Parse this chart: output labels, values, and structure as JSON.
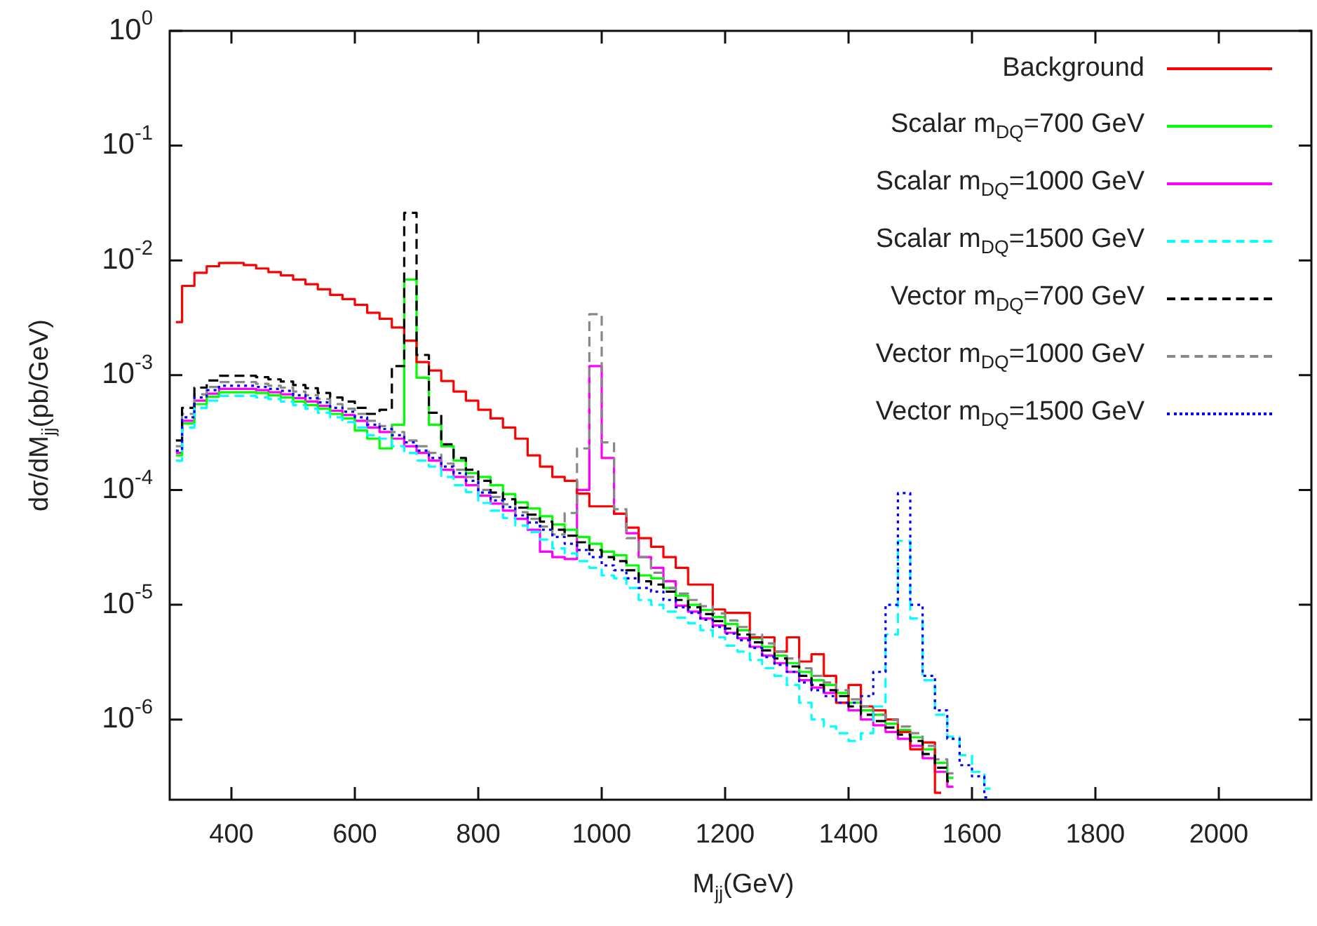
{
  "chart_data": {
    "type": "step",
    "xlabel": "M$_{jj}$(GeV)",
    "ylabel": "dσ/dM$_{jj}$(pb/GeV)",
    "x": [
      310,
      330,
      350,
      370,
      390,
      410,
      430,
      450,
      470,
      490,
      510,
      530,
      550,
      570,
      590,
      610,
      630,
      650,
      670,
      690,
      710,
      730,
      750,
      770,
      790,
      810,
      830,
      850,
      870,
      890,
      910,
      930,
      950,
      970,
      990,
      1010,
      1030,
      1050,
      1070,
      1090,
      1110,
      1130,
      1150,
      1170,
      1190,
      1210,
      1230,
      1250,
      1270,
      1290,
      1310,
      1330,
      1350,
      1370,
      1390,
      1410,
      1430,
      1450,
      1470,
      1490,
      1510,
      1530,
      1550,
      1570,
      1590,
      1610,
      1630
    ],
    "series": [
      {
        "name": "Background",
        "color": "#ff0000",
        "line_style": "solid",
        "values": [
          0.0029,
          0.006,
          0.0078,
          0.0089,
          0.0095,
          0.0095,
          0.0091,
          0.0085,
          0.0079,
          0.0074,
          0.0068,
          0.0062,
          0.0056,
          0.005,
          0.0046,
          0.0041,
          0.0035,
          0.0031,
          0.0026,
          0.002,
          0.0013,
          0.0011,
          0.00089,
          0.00072,
          0.0006,
          0.0005,
          0.00042,
          0.00035,
          0.00028,
          0.0002,
          0.00016,
          0.00013,
          0.00012,
          9.3e-05,
          7.2e-05,
          7.2e-05,
          6.2e-05,
          4.7e-05,
          3.8e-05,
          3.2e-05,
          2.6e-05,
          2.1e-05,
          1.5e-05,
          1.5e-05,
          9.1e-06,
          8.5e-06,
          8.5e-06,
          5.2e-06,
          5.2e-06,
          3.9e-06,
          5.2e-06,
          3.2e-06,
          3.7e-06,
          2.4e-06,
          1.4e-06,
          2e-06,
          1.3e-06,
          1.2e-06,
          1e-06,
          7.8e-07,
          5.5e-07,
          6.3e-07,
          2.3e-07,
          null,
          null,
          null,
          null
        ]
      },
      {
        "name": "Scalar m$_{DQ}$=700 GeV",
        "color": "#00ff00",
        "line_style": "solid",
        "values": [
          0.0002,
          0.00038,
          0.00056,
          0.00065,
          0.00071,
          0.00071,
          0.00071,
          0.0007,
          0.00067,
          0.00064,
          0.00059,
          0.00055,
          0.00051,
          0.00046,
          0.00042,
          0.00033,
          0.00028,
          0.00023,
          0.00037,
          0.0068,
          0.00095,
          0.00037,
          0.00024,
          0.00018,
          0.00014,
          0.00013,
          0.00011,
          9.2e-05,
          7.8e-05,
          6.9e-05,
          5.9e-05,
          5e-05,
          4.5e-05,
          3.9e-05,
          3.4e-05,
          2.9e-05,
          2.7e-05,
          2.2e-05,
          1.8e-05,
          1.7e-05,
          1.4e-05,
          1.2e-05,
          1e-05,
          9e-06,
          7.8e-06,
          6.8e-06,
          6e-06,
          5.1e-06,
          4.3e-06,
          3.6e-06,
          3.1e-06,
          2.6e-06,
          2.2e-06,
          2e-06,
          1.7e-06,
          1.4e-06,
          1.2e-06,
          1.1e-06,
          9.2e-07,
          8.1e-07,
          7e-07,
          5.5e-07,
          4.2e-07,
          3.1e-07,
          null,
          null,
          null
        ]
      },
      {
        "name": "Scalar m$_{DQ}$=1000 GeV",
        "color": "#ff00ff",
        "line_style": "solid",
        "values": [
          0.00021,
          0.0004,
          0.0006,
          0.00069,
          0.00076,
          0.00076,
          0.00076,
          0.00074,
          0.00071,
          0.00068,
          0.00063,
          0.00059,
          0.00054,
          0.00049,
          0.00045,
          0.0004,
          0.00035,
          0.00032,
          0.00028,
          0.00024,
          0.00021,
          0.00018,
          0.00015,
          0.00013,
          0.00011,
          8.9e-05,
          7.6e-05,
          6.6e-05,
          5.6e-05,
          4.5e-05,
          2.9e-05,
          2.6e-05,
          2.5e-05,
          0.0001,
          0.0012,
          0.00019,
          6.2e-05,
          4.2e-05,
          2.6e-05,
          2.1e-05,
          1.6e-05,
          9.8e-06,
          8.7e-06,
          7.6e-06,
          6.6e-06,
          5.7e-06,
          5.1e-06,
          4.3e-06,
          3.6e-06,
          3.1e-06,
          2.6e-06,
          2.2e-06,
          1.9e-06,
          1.7e-06,
          1.4e-06,
          1.2e-06,
          1e-06,
          8.9e-07,
          7.8e-07,
          6.8e-07,
          5.9e-07,
          4.6e-07,
          3.5e-07,
          2.6e-07,
          null,
          null,
          null
        ]
      },
      {
        "name": "Scalar m$_{DQ}$=1500 GeV",
        "color": "#00ffff",
        "line_style": "dashed",
        "values": [
          0.00018,
          0.00035,
          0.00052,
          0.0006,
          0.00066,
          0.00066,
          0.00066,
          0.00064,
          0.00062,
          0.00059,
          0.00055,
          0.00051,
          0.00047,
          0.00043,
          0.00039,
          0.00035,
          0.0003,
          0.00028,
          0.00024,
          0.00021,
          0.00018,
          0.00016,
          0.00013,
          0.00011,
          9.6e-05,
          7.7e-05,
          6.6e-05,
          5.7e-05,
          4.9e-05,
          4.3e-05,
          3.7e-05,
          3.1e-05,
          2.8e-05,
          2.4e-05,
          2.1e-05,
          1.8e-05,
          1.7e-05,
          1.4e-05,
          1.1e-05,
          1e-05,
          8.7e-06,
          7.7e-06,
          6.9e-06,
          6e-06,
          5.2e-06,
          4.4e-06,
          3.9e-06,
          3.3e-06,
          2.8e-06,
          2.4e-06,
          2e-06,
          1.4e-06,
          1e-06,
          8.7e-07,
          7.6e-07,
          6.5e-07,
          7.6e-07,
          1.3e-06,
          5.5e-06,
          3.6e-05,
          7.6e-06,
          2.2e-06,
          1.1e-06,
          7.1e-07,
          4.9e-07,
          3.5e-07,
          2.5e-07
        ]
      },
      {
        "name": "Vector m$_{DQ}$=700 GeV",
        "color": "#000000",
        "line_style": "dashed",
        "values": [
          0.00027,
          0.00052,
          0.00078,
          0.0009,
          0.00099,
          0.00099,
          0.00099,
          0.00096,
          0.00092,
          0.00088,
          0.00082,
          0.00077,
          0.0007,
          0.00064,
          0.00059,
          0.00052,
          0.00046,
          0.0005,
          0.0012,
          0.026,
          0.0015,
          0.00047,
          0.00025,
          0.00019,
          0.00015,
          0.00012,
          9.5e-05,
          8.3e-05,
          7e-05,
          6.1e-05,
          5.3e-05,
          4.5e-05,
          4e-05,
          3.5e-05,
          3e-05,
          2.6e-05,
          2.4e-05,
          2e-05,
          1.6e-05,
          1.5e-05,
          1.3e-05,
          1.1e-05,
          9.5e-06,
          8.3e-06,
          7.2e-06,
          6.2e-06,
          5.5e-06,
          4.7e-06,
          4e-06,
          3.4e-06,
          2.9e-06,
          2.4e-06,
          2e-06,
          1.8e-06,
          1.6e-06,
          1.3e-06,
          1.1e-06,
          9.7e-07,
          8.5e-07,
          7.4e-07,
          6.5e-07,
          5e-07,
          3.8e-07,
          2.9e-07,
          null,
          null,
          null
        ]
      },
      {
        "name": "Vector m$_{DQ}$=1000 GeV",
        "color": "#888888",
        "line_style": "dashed",
        "values": [
          0.00024,
          0.00046,
          0.00068,
          0.00079,
          0.00087,
          0.00087,
          0.00087,
          0.00084,
          0.00081,
          0.00078,
          0.00072,
          0.00067,
          0.00062,
          0.00056,
          0.00051,
          0.00046,
          0.0004,
          0.00036,
          0.00032,
          0.00027,
          0.00024,
          0.00021,
          0.00017,
          0.00015,
          0.00013,
          0.0001,
          8.7e-05,
          7.5e-05,
          6.4e-05,
          5.6e-05,
          4.8e-05,
          4.1e-05,
          6.3e-05,
          0.00023,
          0.0034,
          0.00026,
          6.8e-05,
          3.8e-05,
          2.6e-05,
          1.9e-05,
          1.4e-05,
          1.25e-05,
          1.1e-05,
          9.7e-06,
          8.4e-06,
          7.3e-06,
          6.4e-06,
          5.5e-06,
          4.6e-06,
          3.9e-06,
          3.4e-06,
          2.8e-06,
          2.4e-06,
          2.1e-06,
          1.8e-06,
          1.5e-06,
          1.3e-06,
          1.1e-06,
          9.9e-07,
          8.7e-07,
          7.6e-07,
          5.9e-07,
          4.5e-07,
          3.4e-07,
          null,
          null,
          null
        ]
      },
      {
        "name": "Vector m$_{DQ}$=1500 GeV",
        "color": "#0000ff",
        "line_style": "dotted",
        "values": [
          0.00022,
          0.00043,
          0.00064,
          0.00074,
          0.00081,
          0.00081,
          0.00081,
          0.00079,
          0.00076,
          0.00073,
          0.00067,
          0.00063,
          0.00058,
          0.00052,
          0.00048,
          0.00043,
          0.00037,
          0.00034,
          0.0003,
          0.00026,
          0.00022,
          0.00019,
          0.00016,
          0.00014,
          0.00012,
          9.5e-05,
          8.1e-05,
          7.1e-05,
          6e-05,
          5.2e-05,
          4.5e-05,
          3.9e-05,
          3.4e-05,
          3e-05,
          2.6e-05,
          2.2e-05,
          2e-05,
          1.7e-05,
          1.4e-05,
          1.3e-05,
          1.1e-05,
          9.5e-06,
          8.5e-06,
          7.4e-06,
          6.4e-06,
          5.6e-06,
          4.9e-06,
          4.2e-06,
          3.5e-06,
          3e-06,
          2.6e-06,
          2.1e-06,
          1.8e-06,
          1.6e-06,
          1.4e-06,
          1.4e-06,
          1.6e-06,
          2.6e-06,
          1e-05,
          9.4e-05,
          1e-05,
          2.4e-06,
          1.2e-06,
          6.8e-07,
          4e-07,
          3.2e-07,
          2.1e-07
        ]
      }
    ],
    "xlim": [
      300,
      2150
    ],
    "xticks": [
      400,
      600,
      800,
      1000,
      1200,
      1400,
      1600,
      1800,
      2000
    ],
    "ylim": [
      2e-07,
      1
    ],
    "yticks": [
      {
        "value": 1e-06,
        "label": "10$^{-6}$"
      },
      {
        "value": 1e-05,
        "label": "10$^{-5}$"
      },
      {
        "value": 0.0001,
        "label": "10$^{-4}$"
      },
      {
        "value": 0.001,
        "label": "10$^{-3}$"
      },
      {
        "value": 0.01,
        "label": "10$^{-2}$"
      },
      {
        "value": 0.1,
        "label": "10$^{-1}$"
      },
      {
        "value": 1,
        "label": "10$^{0}$"
      }
    ],
    "log": "y",
    "grid": false,
    "legend": "top right",
    "marker": "none"
  }
}
